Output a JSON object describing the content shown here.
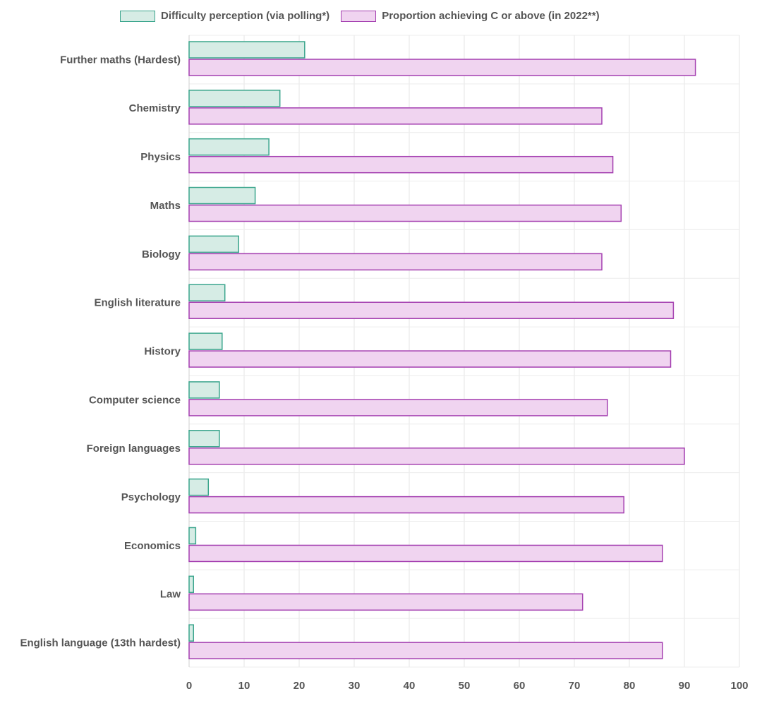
{
  "chart_data": {
    "type": "bar",
    "orientation": "horizontal",
    "categories": [
      "Further maths (Hardest)",
      "Chemistry",
      "Physics",
      "Maths",
      "Biology",
      "English literature",
      "History",
      "Computer science",
      "Foreign languages",
      "Psychology",
      "Economics",
      "Law",
      "English language (13th hardest)"
    ],
    "series": [
      {
        "name": "Difficulty perception (via polling*)",
        "color": "#d6ece5",
        "border": "#3aa58c",
        "values": [
          21,
          16.5,
          14.5,
          12,
          9,
          6.5,
          6,
          5.5,
          5.5,
          3.5,
          1.2,
          0.8,
          0.8
        ]
      },
      {
        "name": "Proportion achieving C or above (in 2022**)",
        "color": "#f0d4f0",
        "border": "#a43fb0",
        "values": [
          92,
          75,
          77,
          78.5,
          75,
          88,
          87.5,
          76,
          90,
          79,
          86,
          71.5,
          86
        ]
      }
    ],
    "xlim": [
      0,
      100
    ],
    "xticks": [
      "0",
      "10",
      "20",
      "30",
      "40",
      "50",
      "60",
      "70",
      "80",
      "90",
      "100"
    ],
    "grid": true,
    "legend_position": "top"
  }
}
